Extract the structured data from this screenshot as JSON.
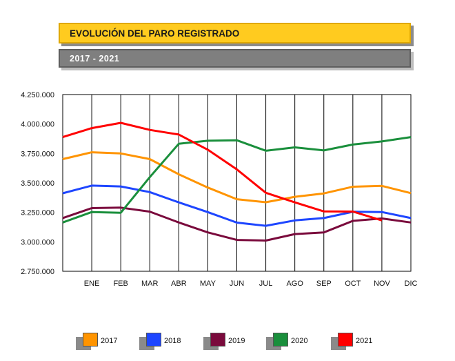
{
  "header": {
    "title": "EVOLUCIÓN DEL PARO REGISTRADO",
    "subtitle": "2017 - 2021"
  },
  "colors": {
    "title_bg": "#ffcb1f",
    "subtitle_bg": "#7f7f7f",
    "grid": "#000000"
  },
  "chart_data": {
    "type": "line",
    "categories": [
      "ENE",
      "FEB",
      "MAR",
      "ABR",
      "MAY",
      "JUN",
      "JUL",
      "AGO",
      "SEP",
      "OCT",
      "NOV",
      "DIC"
    ],
    "yticks": [
      "2.750.000",
      "3.000.000",
      "3.250.000",
      "3.500.000",
      "3.750.000",
      "4.000.000",
      "4.250.000"
    ],
    "ylim": [
      2750000,
      4250000
    ],
    "grid": "vertical",
    "legend_position": "bottom",
    "series": [
      {
        "name": "2017",
        "color": "#ff9400",
        "start": 3702000,
        "values": [
          3760000,
          3750000,
          3702000,
          3573000,
          3461000,
          3362000,
          3336000,
          3382000,
          3411000,
          3468000,
          3475000,
          3413000
        ]
      },
      {
        "name": "2018",
        "color": "#1e46ff",
        "start": 3412000,
        "values": [
          3477000,
          3470000,
          3422000,
          3335000,
          3252000,
          3163000,
          3136000,
          3182000,
          3202000,
          3255000,
          3253000,
          3202000
        ]
      },
      {
        "name": "2019",
        "color": "#7a0a3c",
        "start": 3202000,
        "values": [
          3286000,
          3290000,
          3256000,
          3164000,
          3080000,
          3016000,
          3011000,
          3066000,
          3080000,
          3178000,
          3198000,
          3164000
        ]
      },
      {
        "name": "2020",
        "color": "#1a8f3c",
        "start": 3164000,
        "values": [
          3253000,
          3247000,
          3549000,
          3832000,
          3858000,
          3862000,
          3773000,
          3802000,
          3776000,
          3826000,
          3852000,
          3889000
        ]
      },
      {
        "name": "2021",
        "color": "#ff0000",
        "start": 3889000,
        "values": [
          3965000,
          4010000,
          3950000,
          3911000,
          3782000,
          3615000,
          3416000,
          3335000,
          3258000,
          3257000,
          3182000,
          null
        ]
      }
    ]
  }
}
